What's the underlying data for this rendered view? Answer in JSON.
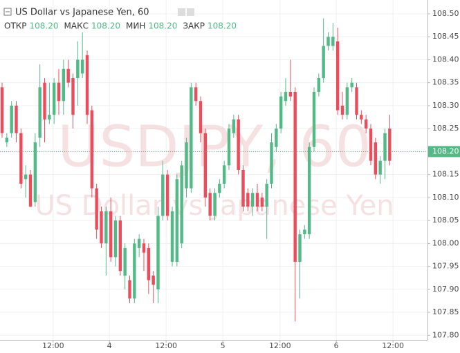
{
  "chart_data": {
    "type": "candlestick",
    "title": "US Dollar vs Japanese Yen, 60",
    "watermark": "USDJPY, 60",
    "watermark_subtitle": "US Dollar vs Japanese Yen",
    "ohlc_header": [
      {
        "name": "ОТКР",
        "value": 108.2,
        "value_label": "108.20"
      },
      {
        "name": "МАКС",
        "value": 108.2,
        "value_label": "108.20"
      },
      {
        "name": "МИН",
        "value": 108.2,
        "value_label": "108.20"
      },
      {
        "name": "ЗАКР",
        "value": 108.2,
        "value_label": "108.20"
      }
    ],
    "last_price": 108.2,
    "last_price_label": "108.20",
    "up_color": "#53b987",
    "down_color": "#eb4d5c",
    "grid": true,
    "open": [
      108.34,
      108.22,
      108.24,
      108.3,
      108.24,
      108.14,
      108.15,
      108.09,
      108.23,
      108.35,
      108.27,
      108.28,
      108.35,
      108.31,
      108.38,
      108.36,
      108.36,
      108.37,
      108.41,
      108.29,
      108.12,
      108.07,
      108.0,
      108.07,
      107.97,
      108.05,
      107.93,
      107.92,
      107.88,
      107.99,
      108.0,
      107.99,
      107.93,
      107.9,
      108.06,
      108.15,
      107.96,
      107.96,
      108.0,
      108.12,
      108.12,
      108.34,
      108.31,
      108.24,
      108.11,
      108.06,
      108.11,
      108.13,
      108.17,
      108.24,
      108.27,
      108.16,
      108.11,
      108.08,
      108.11,
      108.1,
      108.08,
      108.13,
      108.21,
      108.25,
      108.31,
      108.33,
      108.33,
      107.96,
      108.02,
      108.02,
      108.21,
      108.33,
      108.36,
      108.43,
      108.43,
      108.44,
      108.3,
      108.28,
      108.34,
      108.34,
      108.28,
      108.27,
      108.25,
      108.22,
      108.15,
      108.18,
      108.25
    ],
    "high": [
      108.35,
      108.24,
      108.31,
      108.31,
      108.25,
      108.17,
      108.16,
      108.24,
      108.39,
      108.36,
      108.35,
      108.36,
      108.38,
      108.4,
      108.4,
      108.37,
      108.44,
      108.46,
      108.42,
      108.3,
      108.13,
      108.08,
      108.08,
      108.1,
      108.06,
      108.06,
      108.0,
      107.93,
      108.01,
      108.02,
      108.01,
      108.0,
      107.94,
      108.08,
      108.18,
      108.16,
      108.08,
      108.15,
      108.18,
      108.23,
      108.35,
      108.35,
      108.32,
      108.25,
      108.12,
      108.12,
      108.14,
      108.18,
      108.26,
      108.28,
      108.28,
      108.17,
      108.12,
      108.12,
      108.13,
      108.11,
      108.14,
      108.24,
      108.26,
      108.33,
      108.36,
      108.4,
      108.34,
      108.03,
      108.04,
      108.22,
      108.34,
      108.37,
      108.49,
      108.46,
      108.48,
      108.47,
      108.33,
      108.35,
      108.36,
      108.35,
      108.29,
      108.28,
      108.26,
      108.23,
      108.19,
      108.25,
      108.28
    ],
    "low": [
      108.23,
      108.21,
      108.23,
      108.22,
      108.12,
      108.1,
      108.08,
      108.08,
      108.21,
      108.22,
      108.26,
      108.26,
      108.28,
      108.28,
      108.34,
      108.25,
      108.3,
      108.36,
      108.26,
      108.1,
      108.01,
      107.99,
      107.93,
      107.96,
      107.95,
      107.93,
      107.9,
      107.87,
      107.87,
      107.97,
      107.94,
      107.89,
      107.87,
      107.87,
      108.05,
      108.05,
      107.95,
      107.95,
      107.99,
      108.1,
      108.11,
      108.3,
      108.22,
      108.08,
      108.05,
      108.05,
      108.1,
      108.12,
      108.16,
      108.23,
      108.15,
      108.07,
      108.07,
      108.06,
      108.07,
      108.07,
      108.01,
      108.12,
      108.2,
      108.24,
      108.3,
      108.31,
      107.83,
      107.88,
      108.01,
      108.01,
      108.2,
      108.32,
      108.35,
      108.42,
      108.42,
      108.28,
      108.27,
      108.27,
      108.33,
      108.27,
      108.26,
      108.24,
      108.17,
      108.14,
      108.13,
      108.14,
      108.17
    ],
    "close": [
      108.24,
      108.23,
      108.3,
      108.24,
      108.13,
      108.15,
      108.08,
      108.22,
      108.34,
      108.27,
      108.28,
      108.35,
      108.31,
      108.38,
      108.35,
      108.28,
      108.4,
      108.4,
      108.28,
      108.12,
      108.03,
      108.0,
      108.07,
      107.97,
      108.05,
      107.94,
      107.99,
      107.88,
      108.0,
      108.01,
      107.98,
      107.92,
      107.91,
      108.06,
      108.15,
      108.06,
      108.07,
      108.14,
      108.17,
      108.22,
      108.34,
      108.31,
      108.24,
      108.1,
      108.06,
      108.11,
      108.13,
      108.17,
      108.25,
      108.27,
      108.16,
      108.08,
      108.08,
      108.11,
      108.08,
      108.08,
      108.13,
      108.22,
      108.25,
      108.32,
      108.33,
      108.32,
      107.96,
      108.02,
      108.03,
      108.21,
      108.33,
      108.36,
      108.43,
      108.45,
      108.45,
      108.29,
      108.28,
      108.34,
      108.35,
      108.28,
      108.27,
      108.25,
      108.18,
      108.15,
      108.18,
      108.24,
      108.18
    ],
    "xlim": [
      -0.44,
      90
    ],
    "xticks": [
      {
        "value": 10.8,
        "label": "12:00"
      },
      {
        "value": 22.7,
        "label": "4"
      },
      {
        "value": 34.7,
        "label": "12:00"
      },
      {
        "value": 46.7,
        "label": "5"
      },
      {
        "value": 58.8,
        "label": "12:00"
      },
      {
        "value": 70.7,
        "label": "6"
      },
      {
        "value": 82.7,
        "label": "12:00"
      }
    ],
    "ylim": [
      107.79,
      108.53
    ],
    "yticks": [
      {
        "value": 108.5,
        "label": "108.50"
      },
      108.45,
      {
        "value": 108.4,
        "label": "108.40"
      },
      108.35,
      {
        "value": 108.3,
        "label": "108.30"
      },
      108.25,
      {
        "value": 108.2,
        "label": "108.20"
      },
      108.15,
      {
        "value": 108.1,
        "label": "108.10"
      },
      108.05,
      {
        "value": 108,
        "label": "108.00"
      },
      107.95,
      {
        "value": 107.9,
        "label": "107.90"
      },
      107.85,
      {
        "value": 107.8,
        "label": "107.80"
      }
    ]
  }
}
